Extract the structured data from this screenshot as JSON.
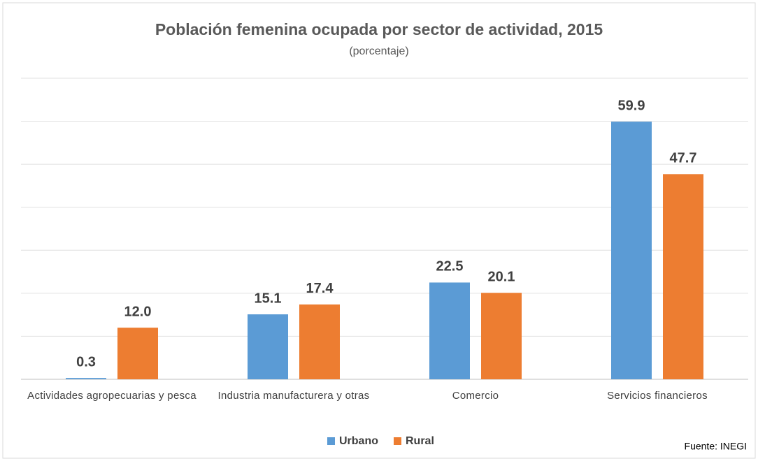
{
  "chart_data": {
    "type": "bar",
    "title": "Población femenina ocupada por sector de actividad, 2015",
    "subtitle": "(porcentaje)",
    "source": "Fuente: INEGI",
    "categories": [
      "Actividades agropecuarias y pesca",
      "Industria manufacturera y otras",
      "Comercio",
      "Servicios financieros"
    ],
    "series": [
      {
        "name": "Urbano",
        "color": "#5b9bd5",
        "values": [
          0.3,
          15.1,
          22.5,
          59.9
        ]
      },
      {
        "name": "Rural",
        "color": "#ed7d31",
        "values": [
          12.0,
          17.4,
          20.1,
          47.7
        ],
        "value_labels": [
          "12.0",
          "17.4",
          "20.1",
          "47.7"
        ]
      }
    ],
    "ylim": [
      0,
      70
    ],
    "yticks": [
      0,
      10,
      20,
      30,
      40,
      50,
      60,
      70
    ],
    "grid": true,
    "legend": "bottom"
  }
}
